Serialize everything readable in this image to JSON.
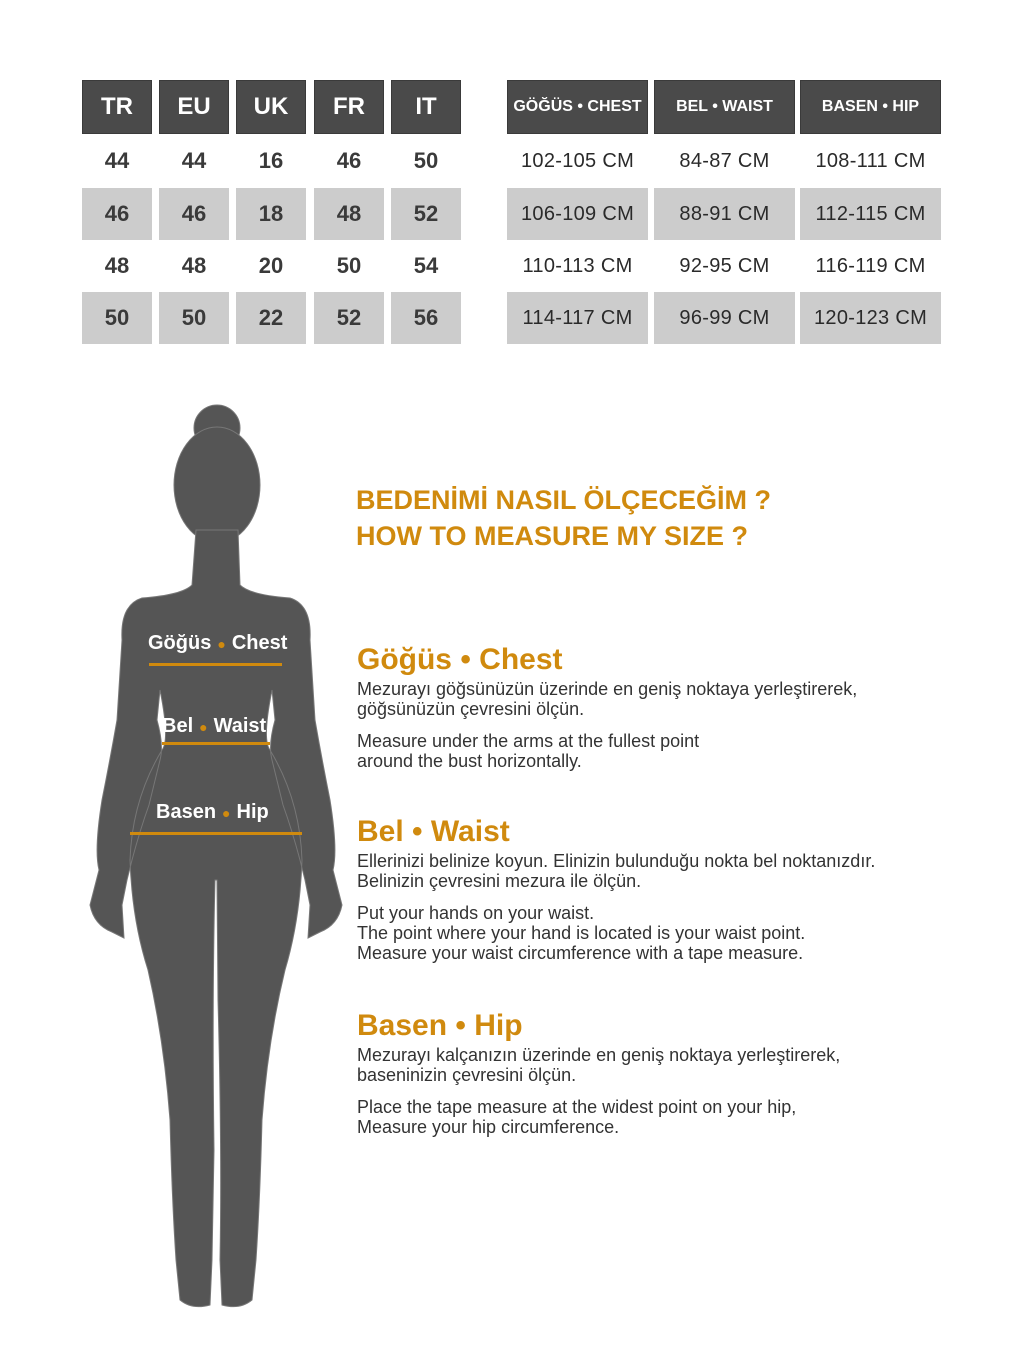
{
  "size_table": {
    "headers": [
      "TR",
      "EU",
      "UK",
      "FR",
      "IT"
    ],
    "rows": [
      [
        "44",
        "44",
        "16",
        "46",
        "50"
      ],
      [
        "46",
        "46",
        "18",
        "48",
        "52"
      ],
      [
        "48",
        "48",
        "20",
        "50",
        "54"
      ],
      [
        "50",
        "50",
        "22",
        "52",
        "56"
      ]
    ]
  },
  "measure_table": {
    "headers": [
      "GÖĞÜS • CHEST",
      "BEL • WAIST",
      "BASEN • HIP"
    ],
    "rows": [
      [
        "102-105 CM",
        "84-87 CM",
        "108-111 CM"
      ],
      [
        "106-109 CM",
        "88-91 CM",
        "112-115 CM"
      ],
      [
        "110-113 CM",
        "92-95 CM",
        "116-119 CM"
      ],
      [
        "114-117 CM",
        "96-99 CM",
        "120-123 CM"
      ]
    ]
  },
  "figure": {
    "labels": [
      {
        "a": "Göğüs",
        "b": "Chest"
      },
      {
        "a": "Bel",
        "b": "Waist"
      },
      {
        "a": "Basen",
        "b": "Hip"
      }
    ]
  },
  "heading": {
    "tr": "BEDENİMİ NASIL ÖLÇECEĞİM ?",
    "en": "HOW TO MEASURE MY SIZE ?"
  },
  "sections": [
    {
      "title": "Göğüs • Chest",
      "tr": "Mezurayı göğsünüzün üzerinde en geniş noktaya yerleştirerek,\ngöğsünüzün çevresini ölçün.",
      "en": "Measure under the arms at the fullest point\naround the bust horizontally."
    },
    {
      "title": "Bel • Waist",
      "tr": "Ellerinizi belinize koyun. Elinizin bulunduğu nokta bel noktanızdır.\nBelinizin çevresini mezura ile ölçün.",
      "en": "Put your hands on your waist.\nThe point where your hand is located is your waist point.\nMeasure your waist circumference with a tape measure."
    },
    {
      "title": "Basen • Hip",
      "tr": "Mezurayı kalçanızın üzerinde en geniş noktaya yerleştirerek,\nbaseninizin çevresini ölçün.",
      "en": "Place the tape measure at the widest point on your hip,\nMeasure your hip circumference."
    }
  ],
  "colors": {
    "accent": "#d08a0e",
    "header_bg": "#4a4a4a",
    "row_alt": "#cccccc",
    "silhouette": "#555555"
  }
}
